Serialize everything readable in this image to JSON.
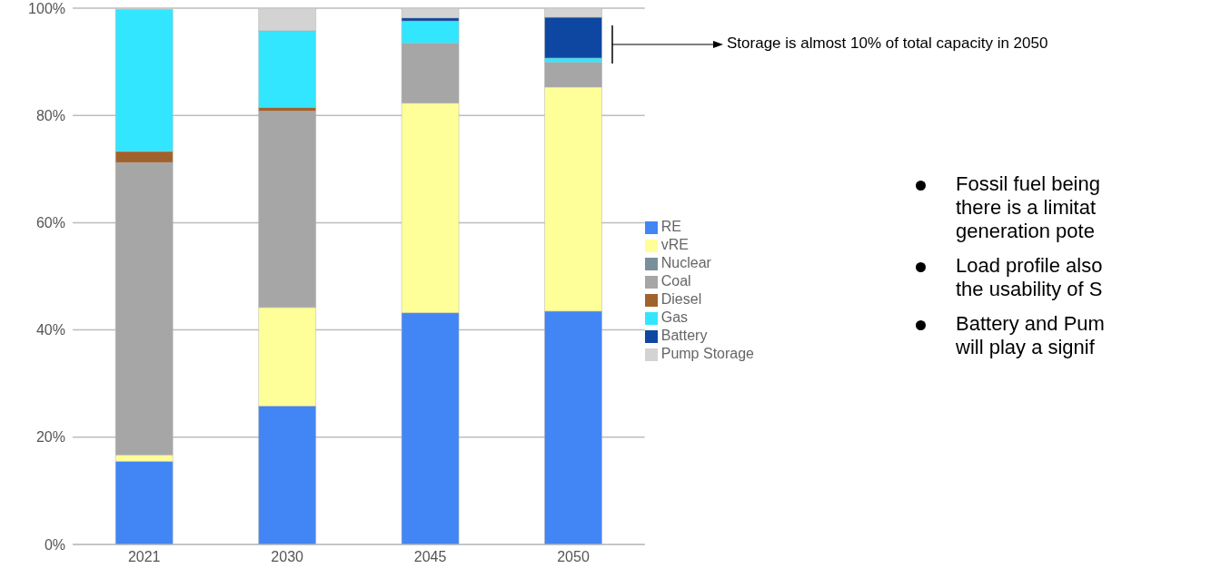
{
  "chart_data": {
    "type": "bar",
    "stacked": true,
    "categories": [
      "2021",
      "2030",
      "2045",
      "2050"
    ],
    "series": [
      {
        "name": "RE",
        "color": "#4285f4",
        "values": [
          15.5,
          25.8,
          43.2,
          43.5
        ]
      },
      {
        "name": "vRE",
        "color": "#ffff99",
        "values": [
          1.2,
          18.4,
          39.1,
          41.8
        ]
      },
      {
        "name": "Nuclear",
        "color": "#7a8f9c",
        "values": [
          0,
          0,
          0,
          0
        ]
      },
      {
        "name": "Coal",
        "color": "#a6a6a6",
        "values": [
          54.5,
          36.6,
          11.2,
          4.6
        ]
      },
      {
        "name": "Diesel",
        "color": "#a0622d",
        "values": [
          2.1,
          0.7,
          0,
          0
        ]
      },
      {
        "name": "Gas",
        "color": "#33e6ff",
        "values": [
          26.5,
          14.3,
          4.1,
          0.8
        ]
      },
      {
        "name": "Battery",
        "color": "#0d47a1",
        "values": [
          0,
          0,
          0.6,
          7.6
        ]
      },
      {
        "name": "Pump Storage",
        "color": "#d3d3d3",
        "values": [
          0,
          4.2,
          1.8,
          1.7
        ]
      }
    ],
    "ylim": [
      0,
      100
    ],
    "yticks": [
      {
        "value": 0,
        "label": "0%"
      },
      {
        "value": 20,
        "label": "20%"
      },
      {
        "value": 40,
        "label": "40%"
      },
      {
        "value": 60,
        "label": "60%"
      },
      {
        "value": 80,
        "label": "80%"
      },
      {
        "value": 100,
        "label": "100%"
      }
    ],
    "grid": "y",
    "legend": "right",
    "annotations": [
      "Storage is almost 10% of total capacity in 2050",
      "Fossil fuel being\nthere is a limitat\ngeneration pote",
      "Load profile also\nthe usability of S",
      "Battery and Pum\nwill play a signif"
    ]
  }
}
